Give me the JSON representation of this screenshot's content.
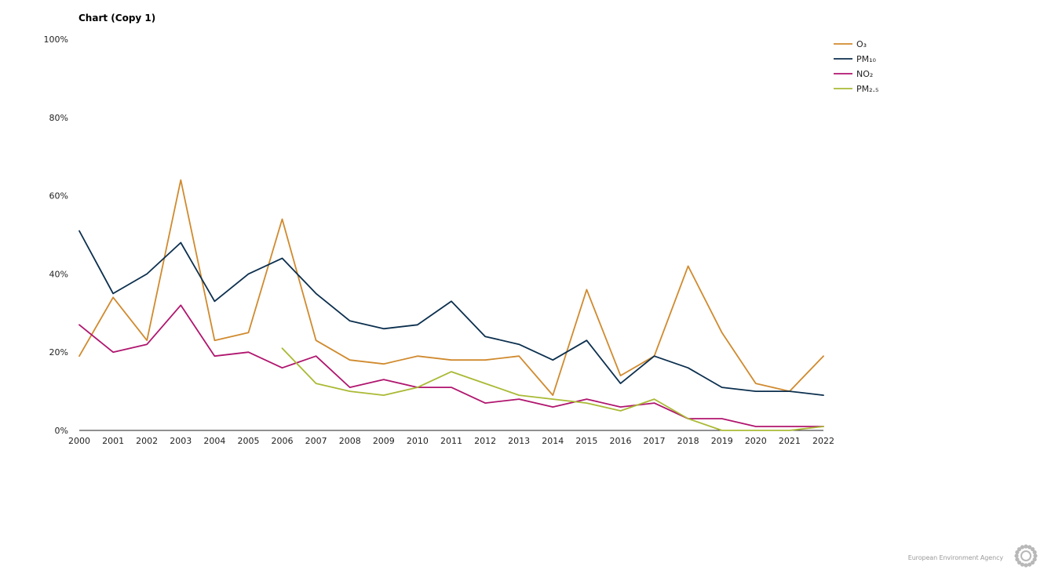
{
  "chart_data": {
    "type": "line",
    "title": "Chart (Copy 1)",
    "xlabel": "",
    "ylabel": "",
    "ylim": [
      0,
      100
    ],
    "yticks": [
      "0%",
      "20%",
      "40%",
      "60%",
      "80%",
      "100%"
    ],
    "ytick_values": [
      0,
      20,
      40,
      60,
      80,
      100
    ],
    "categories": [
      "2000",
      "2001",
      "2002",
      "2003",
      "2004",
      "2005",
      "2006",
      "2007",
      "2008",
      "2009",
      "2010",
      "2011",
      "2012",
      "2013",
      "2014",
      "2015",
      "2016",
      "2017",
      "2018",
      "2019",
      "2020",
      "2021",
      "2022"
    ],
    "grid": false,
    "legend_position": "top-right",
    "series": [
      {
        "name": "O₃",
        "color": "#d08a2e",
        "values": [
          19,
          34,
          23,
          64,
          23,
          25,
          54,
          23,
          18,
          17,
          19,
          18,
          18,
          19,
          9,
          36,
          14,
          19,
          42,
          25,
          12,
          10,
          19
        ]
      },
      {
        "name": "PM₁₀",
        "color": "#0b2f4e",
        "values": [
          51,
          35,
          40,
          48,
          33,
          40,
          44,
          35,
          28,
          26,
          27,
          33,
          24,
          22,
          18,
          23,
          12,
          19,
          16,
          11,
          10,
          10,
          9
        ]
      },
      {
        "name": "NO₂",
        "color": "#b0156e",
        "values": [
          27,
          20,
          22,
          32,
          19,
          20,
          16,
          19,
          11,
          13,
          11,
          11,
          7,
          8,
          6,
          8,
          6,
          7,
          3,
          3,
          1,
          1,
          1
        ]
      },
      {
        "name": "PM₂.₅",
        "color": "#aab934",
        "values": [
          null,
          null,
          null,
          null,
          null,
          null,
          21,
          12,
          10,
          9,
          11,
          15,
          12,
          9,
          8,
          7,
          5,
          8,
          3,
          0,
          0,
          0,
          1
        ]
      }
    ]
  },
  "footer": {
    "credit": "European Environment Agency",
    "logo_icon": "eea-sun-logo-icon"
  }
}
